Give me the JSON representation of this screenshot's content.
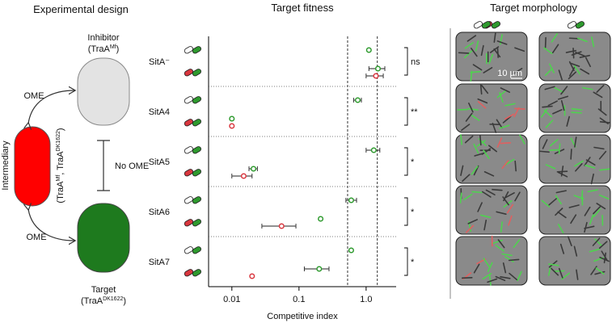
{
  "design": {
    "title": "Experimental design",
    "inhibitor": {
      "name": "Inhibitor",
      "protein": "(TraA",
      "sup": "Mf",
      "close": ")"
    },
    "intermediary": {
      "name": "Intermediary",
      "protein1": "(TraA",
      "sup1": "Mf",
      "protein2": ", TraA",
      "sup2": "DK1622",
      "close": ")"
    },
    "target": {
      "name": "Target",
      "protein": "(TraA",
      "sup": "DK1622",
      "close": ")"
    },
    "ome_top": "OME",
    "ome_bottom": "OME",
    "no_ome": "No OME"
  },
  "chart_data": {
    "type": "scatter",
    "title": "Target fitness",
    "xlabel": "Competitive index",
    "log_x": true,
    "xlim": [
      0.0045,
      2.8
    ],
    "xticks": [
      0.01,
      0.1,
      {
        "value": 1,
        "label": "1.0"
      }
    ],
    "reference_lines": [
      0.53,
      1.47
    ],
    "categories": [
      "SitA⁻",
      "SitA4",
      "SitA5",
      "SitA6",
      "SitA7"
    ],
    "significance": [
      "ns",
      "**",
      "*",
      "*",
      "*"
    ],
    "series": [
      {
        "color": "#2e9a2e",
        "values": [
          1.1,
          0.75,
          1.3,
          0.6,
          0.6
        ],
        "lo": [
          null,
          0.65,
          1.0,
          0.5,
          null
        ],
        "hi": [
          null,
          0.85,
          1.6,
          0.72,
          null
        ]
      },
      {
        "color": "#2e9a2e",
        "values": [
          1.5,
          0.01,
          0.021,
          0.21,
          0.2
        ],
        "lo": [
          1.1,
          null,
          0.018,
          null,
          0.12
        ],
        "hi": [
          1.9,
          null,
          0.024,
          null,
          0.28
        ]
      },
      {
        "color": "#d9363e",
        "values": [
          1.4,
          0.01,
          0.015,
          0.055,
          0.02
        ],
        "lo": [
          1.0,
          null,
          0.01,
          0.028,
          null
        ],
        "hi": [
          1.8,
          null,
          0.02,
          0.09,
          null
        ]
      }
    ]
  },
  "morphology": {
    "title": "Target morphology",
    "scale_bar": "10 µm"
  }
}
